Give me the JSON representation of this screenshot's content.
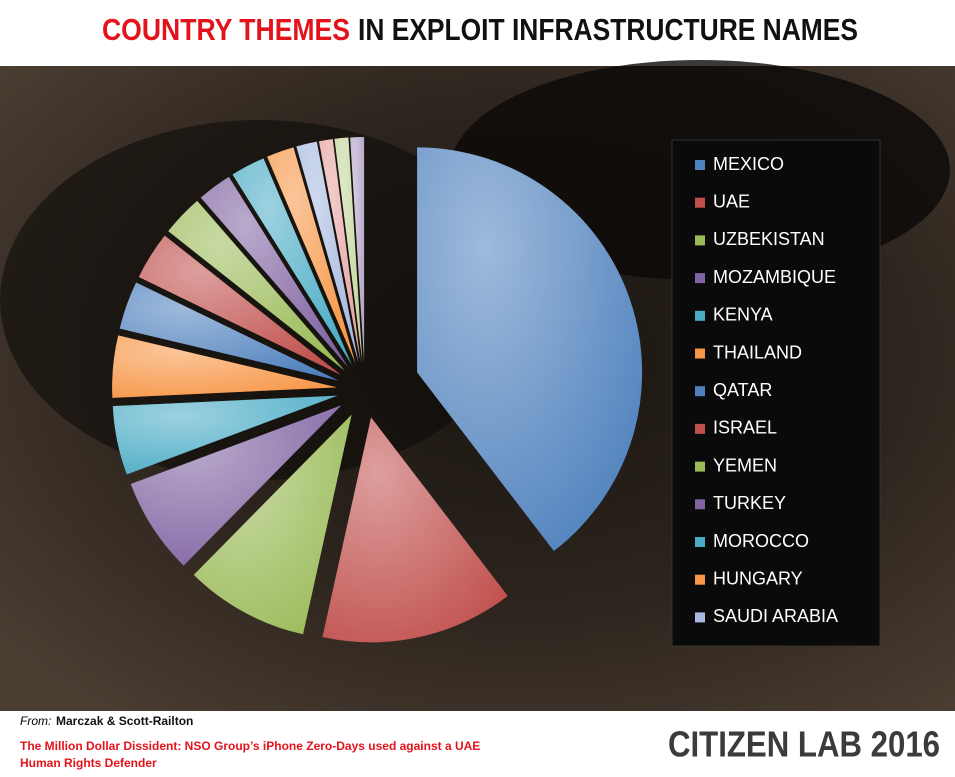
{
  "chart_data": {
    "type": "pie",
    "title_highlight": "COUNTRY THEMES",
    "title": "IN EXPLOIT INFRASTRUCTURE NAMES",
    "categories": [
      "MEXICO",
      "UAE",
      "UZBEKISTAN",
      "MOZAMBIQUE",
      "KENYA",
      "THAILAND",
      "QATAR",
      "ISRAEL",
      "YEMEN",
      "TURKEY",
      "MOROCCO",
      "HUNGARY",
      "SAUDI ARABIA",
      null,
      null,
      null
    ],
    "values": [
      40,
      14,
      9,
      7,
      5,
      4.5,
      3.5,
      3.5,
      3,
      2.5,
      2.5,
      2,
      1.5,
      1,
      1,
      1
    ],
    "colors": [
      "#4f81bd",
      "#c0504d",
      "#9bbb59",
      "#8064a2",
      "#4bacc6",
      "#f79646",
      "#4f81bd",
      "#c0504d",
      "#9bbb59",
      "#8064a2",
      "#4bacc6",
      "#f79646",
      "#a7b9e0",
      "#e6a3a1",
      "#c3d69b",
      "#b3a2c7"
    ],
    "legend": "right"
  },
  "footer": {
    "from": "From:",
    "authors": "Marczak & Scott-Railton",
    "source_lines": [
      "The Million Dollar Dissident: NSO Group’s iPhone Zero-Days used against a UAE",
      "Human Rights Defender"
    ],
    "credit": "CITIZEN LAB 2016"
  }
}
